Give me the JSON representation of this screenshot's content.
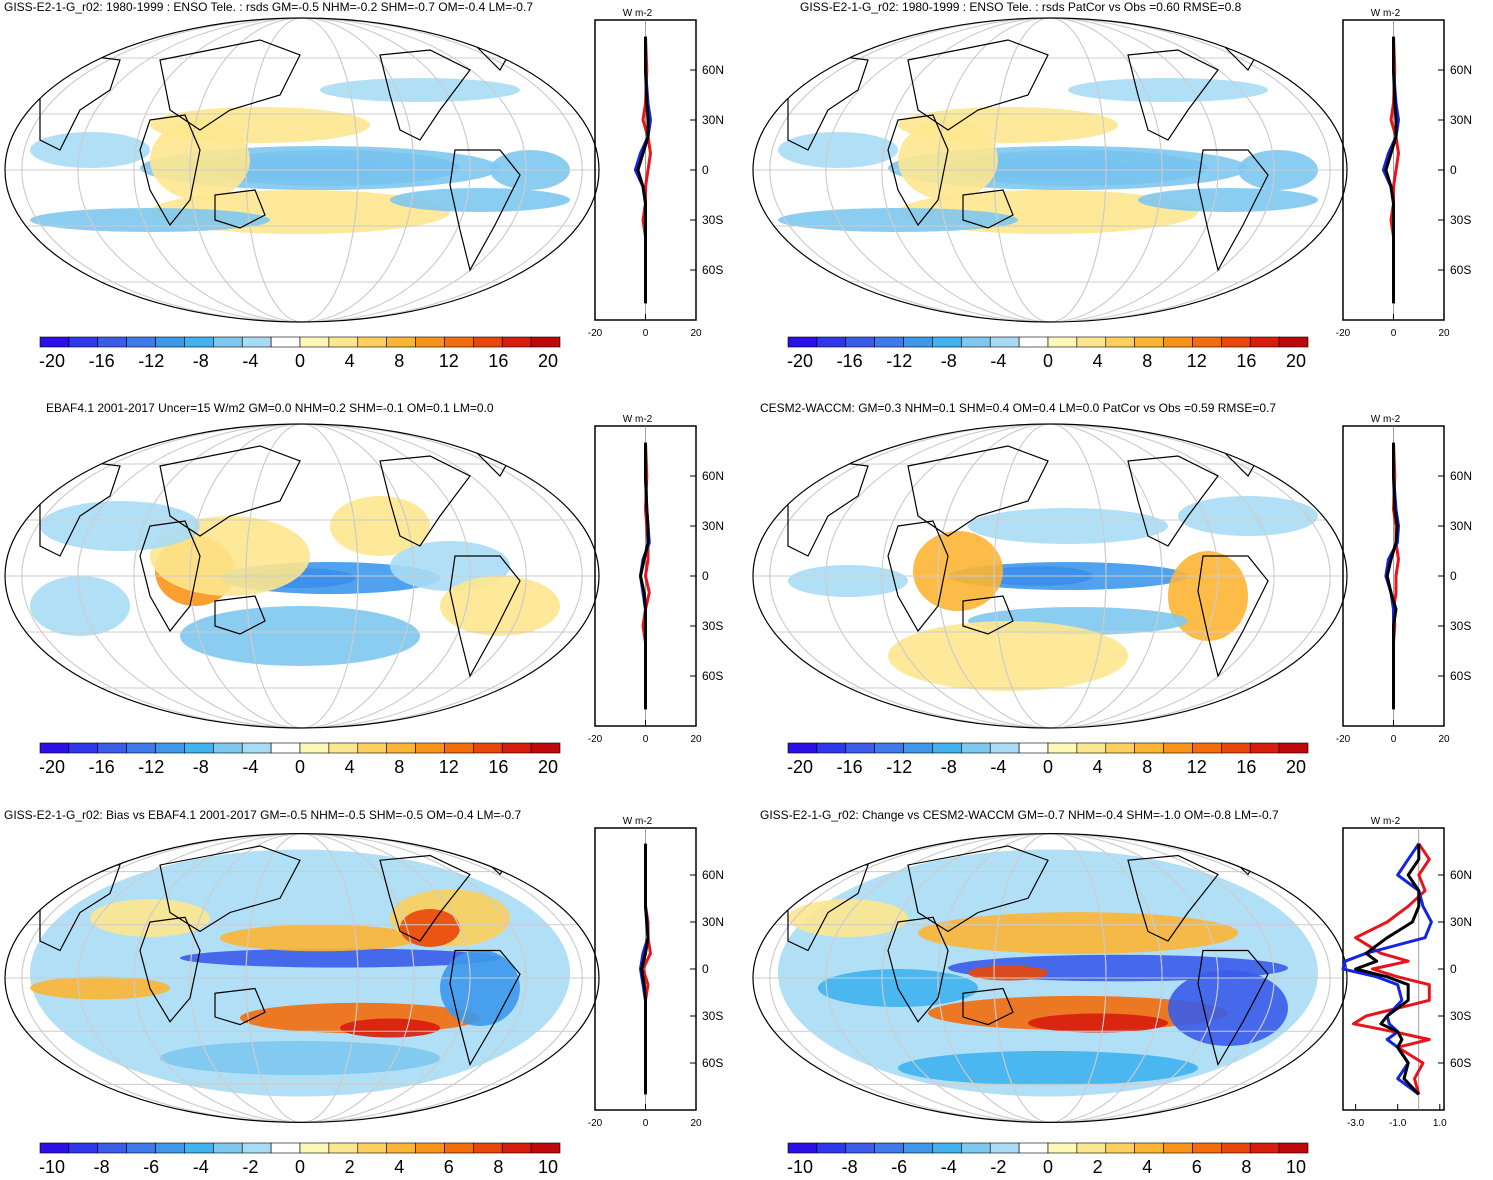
{
  "palette": [
    "#2a10e6",
    "#2f37ea",
    "#3a5ce9",
    "#3f7aec",
    "#3d98ec",
    "#3fb2ef",
    "#7ec8f0",
    "#a9dbf5",
    "#ffffff",
    "#fdf7b8",
    "#fde78e",
    "#fdcf5c",
    "#fcb533",
    "#f99318",
    "#f36d0d",
    "#e9470a",
    "#d81d0c",
    "#bf080b"
  ],
  "panels": [
    {
      "id": "p1",
      "title": "GISS-E2-1-G_r02: 1980-1999 : ENSO Tele. : rsds GM=-0.5 NHM=-0.2 SHM=-0.7 OM=-0.4 LM=-0.7",
      "unit": "W m-2",
      "lat_ticks": [
        "60N",
        "30N",
        "0",
        "30S",
        "60S"
      ],
      "x_ticks": [
        "-20",
        "0",
        "20"
      ],
      "colorbar_labels": [
        "-20",
        "-16",
        "-12",
        "-8",
        "-4",
        "0",
        "4",
        "8",
        "12",
        "16",
        "20"
      ],
      "profile": {
        "xrange": [
          -20,
          20
        ],
        "series": [
          {
            "color": "red",
            "lat": [
              80,
              60,
              40,
              30,
              20,
              10,
              0,
              -10,
              -20,
              -30,
              -40,
              -60,
              -80
            ],
            "values": [
              0,
              0.5,
              0,
              -1,
              1,
              2,
              1,
              0,
              0,
              -1,
              0,
              0,
              0
            ]
          },
          {
            "color": "blue",
            "lat": [
              80,
              60,
              40,
              30,
              20,
              10,
              0,
              -10,
              -20,
              -30,
              -40,
              -60,
              -80
            ],
            "values": [
              0,
              0,
              1,
              2,
              1,
              -2,
              -4,
              -1,
              0,
              0,
              0,
              0,
              0
            ]
          },
          {
            "color": "black",
            "lat": [
              80,
              60,
              40,
              30,
              20,
              10,
              0,
              -10,
              -20,
              -30,
              -40,
              -60,
              -80
            ],
            "values": [
              0,
              0,
              0.5,
              1,
              1,
              -1,
              -3,
              -1,
              0,
              0,
              0,
              0,
              0
            ]
          }
        ]
      }
    },
    {
      "id": "p2",
      "title": "GISS-E2-1-G_r02: 1980-1999 : ENSO Tele. : rsds PatCor vs Obs =0.60 RMSE=0.8",
      "unit": "W m-2",
      "lat_ticks": [
        "60N",
        "30N",
        "0",
        "30S",
        "60S"
      ],
      "x_ticks": [
        "-20",
        "0",
        "20"
      ],
      "colorbar_labels": [
        "-20",
        "-16",
        "-12",
        "-8",
        "-4",
        "0",
        "4",
        "8",
        "12",
        "16",
        "20"
      ],
      "profile": {
        "xrange": [
          -20,
          20
        ],
        "series": [
          {
            "color": "red",
            "lat": [
              80,
              60,
              40,
              30,
              20,
              10,
              0,
              -10,
              -20,
              -30,
              -40,
              -60,
              -80
            ],
            "values": [
              0,
              0.5,
              0,
              -1,
              1,
              2,
              1,
              0,
              0,
              -1,
              0,
              0,
              0
            ]
          },
          {
            "color": "blue",
            "lat": [
              80,
              60,
              40,
              30,
              20,
              10,
              0,
              -10,
              -20,
              -30,
              -40,
              -60,
              -80
            ],
            "values": [
              0,
              0,
              1,
              2,
              1,
              -2,
              -4,
              -1,
              0,
              0,
              0,
              0,
              0
            ]
          },
          {
            "color": "black",
            "lat": [
              80,
              60,
              40,
              30,
              20,
              10,
              0,
              -10,
              -20,
              -30,
              -40,
              -60,
              -80
            ],
            "values": [
              0,
              0,
              0.5,
              1,
              1,
              -1,
              -3,
              -1,
              0,
              0,
              0,
              0,
              0
            ]
          }
        ]
      }
    },
    {
      "id": "p3",
      "title": "EBAF4.1 2001-2017 Uncer=15 W/m2 GM=0.0 NHM=0.2 SHM=-0.1 OM=0.1 LM=0.0",
      "unit": "W m-2",
      "lat_ticks": [
        "60N",
        "30N",
        "0",
        "30S",
        "60S"
      ],
      "x_ticks": [
        "-20",
        "0",
        "20"
      ],
      "colorbar_labels": [
        "-20",
        "-16",
        "-12",
        "-8",
        "-4",
        "0",
        "4",
        "8",
        "12",
        "16",
        "20"
      ],
      "profile": {
        "xrange": [
          -20,
          20
        ],
        "series": [
          {
            "color": "red",
            "lat": [
              80,
              60,
              40,
              30,
              20,
              10,
              0,
              -10,
              -20,
              -30,
              -40,
              -60,
              -80
            ],
            "values": [
              0,
              0.5,
              0,
              0.5,
              1,
              1,
              0,
              1.5,
              0,
              -1,
              0,
              0,
              0
            ]
          },
          {
            "color": "blue",
            "lat": [
              80,
              60,
              40,
              30,
              20,
              10,
              0,
              -10,
              -20,
              -30,
              -40,
              -60,
              -80
            ],
            "values": [
              0,
              0,
              0.5,
              1,
              1.5,
              -1,
              -2,
              -1,
              0,
              0,
              0,
              0,
              0
            ]
          },
          {
            "color": "black",
            "lat": [
              80,
              60,
              40,
              30,
              20,
              10,
              0,
              -10,
              -20,
              -30,
              -40,
              -60,
              -80
            ],
            "values": [
              0,
              0,
              0.5,
              1,
              1,
              -0.5,
              -2,
              -0.5,
              0,
              0,
              0,
              0,
              0
            ]
          }
        ]
      }
    },
    {
      "id": "p4",
      "title": "CESM2-WACCM: GM=0.3 NHM=0.1 SHM=0.4 OM=0.4 LM=0.0 PatCor vs Obs =0.59 RMSE=0.7",
      "unit": "W m-2",
      "lat_ticks": [
        "60N",
        "30N",
        "0",
        "30S",
        "60S"
      ],
      "x_ticks": [
        "-20",
        "0",
        "20"
      ],
      "colorbar_labels": [
        "-20",
        "-16",
        "-12",
        "-8",
        "-4",
        "0",
        "4",
        "8",
        "12",
        "16",
        "20"
      ],
      "profile": {
        "xrange": [
          -20,
          20
        ],
        "series": [
          {
            "color": "red",
            "lat": [
              80,
              60,
              40,
              30,
              20,
              10,
              0,
              -10,
              -20,
              -30,
              -40,
              -60,
              -80
            ],
            "values": [
              0,
              0.5,
              0,
              1,
              1,
              2,
              1,
              1,
              0,
              0.5,
              0,
              0,
              0
            ]
          },
          {
            "color": "blue",
            "lat": [
              80,
              60,
              40,
              30,
              20,
              10,
              0,
              -10,
              -20,
              -30,
              -40,
              -60,
              -80
            ],
            "values": [
              0,
              0,
              1,
              2,
              1.5,
              -2,
              -3,
              -1,
              0,
              0,
              0,
              0,
              0
            ]
          },
          {
            "color": "black",
            "lat": [
              80,
              60,
              40,
              30,
              20,
              10,
              0,
              -10,
              -20,
              -30,
              -40,
              -60,
              -80
            ],
            "values": [
              0,
              0,
              0.5,
              1.5,
              1,
              -1,
              -2.5,
              -1,
              1,
              0,
              0,
              0,
              0
            ]
          }
        ]
      }
    },
    {
      "id": "p5",
      "title": "GISS-E2-1-G_r02: Bias vs EBAF4.1 2001-2017 GM=-0.5 NHM=-0.5 SHM=-0.5 OM=-0.4 LM=-0.7",
      "unit": "W m-2",
      "lat_ticks": [
        "60N",
        "30N",
        "0",
        "30S",
        "60S"
      ],
      "x_ticks": [
        "-20",
        "0",
        "20"
      ],
      "colorbar_labels": [
        "-10",
        "-8",
        "-6",
        "-4",
        "-2",
        "0",
        "2",
        "4",
        "6",
        "8",
        "10"
      ],
      "profile": {
        "xrange": [
          -20,
          20
        ],
        "series": [
          {
            "color": "red",
            "lat": [
              80,
              60,
              40,
              30,
              20,
              10,
              0,
              -10,
              -20,
              -30,
              -40,
              -60,
              -80
            ],
            "values": [
              0,
              0,
              0,
              1,
              1,
              2,
              -1,
              1,
              0,
              0,
              0,
              0,
              0
            ]
          },
          {
            "color": "blue",
            "lat": [
              80,
              60,
              40,
              30,
              20,
              10,
              0,
              -10,
              -20,
              -30,
              -40,
              -60,
              -80
            ],
            "values": [
              0,
              0,
              0,
              0.5,
              1,
              -1,
              -2,
              -1,
              0,
              0,
              0,
              0,
              0
            ]
          },
          {
            "color": "black",
            "lat": [
              80,
              60,
              40,
              30,
              20,
              10,
              0,
              -10,
              -20,
              -30,
              -40,
              -60,
              -80
            ],
            "values": [
              0,
              0,
              0,
              0.5,
              1,
              0,
              -1.5,
              -0.5,
              0,
              0,
              0,
              0,
              0
            ]
          }
        ]
      }
    },
    {
      "id": "p6",
      "title": "GISS-E2-1-G_r02: Change vs CESM2-WACCM GM=-0.7 NHM=-0.4 SHM=-1.0 OM=-0.8 LM=-0.7",
      "unit": "W m-2",
      "lat_ticks": [
        "60N",
        "30N",
        "0",
        "30S",
        "60S"
      ],
      "x_ticks": [
        "-3.0",
        "-1.0",
        "1.0"
      ],
      "colorbar_labels": [
        "-10",
        "-8",
        "-6",
        "-4",
        "-2",
        "0",
        "2",
        "4",
        "6",
        "8",
        "10"
      ],
      "profile": {
        "xrange": [
          -3.6,
          1.2
        ],
        "series": [
          {
            "color": "red",
            "lat": [
              80,
              70,
              60,
              50,
              40,
              30,
              20,
              10,
              5,
              0,
              -5,
              -10,
              -20,
              -30,
              -35,
              -40,
              -45,
              -50,
              -60,
              -70,
              -80
            ],
            "values": [
              0,
              0.5,
              0,
              0.3,
              -0.5,
              -1.5,
              -3.0,
              -1.8,
              -0.5,
              -2.2,
              -1.0,
              0.5,
              0.5,
              -2.5,
              -3.1,
              -1.2,
              0.5,
              -1.0,
              0.2,
              -0.2,
              0
            ]
          },
          {
            "color": "blue",
            "lat": [
              80,
              70,
              60,
              50,
              40,
              30,
              20,
              10,
              5,
              0,
              -5,
              -10,
              -20,
              -30,
              -35,
              -40,
              -45,
              -50,
              -60,
              -70,
              -80
            ],
            "values": [
              0,
              -0.5,
              -1.0,
              0,
              0.2,
              0.6,
              0.3,
              -2.5,
              -3.5,
              -3.6,
              -2.0,
              -1.0,
              -0.8,
              -1.5,
              -1.4,
              -1.0,
              -1.5,
              -1.0,
              -0.5,
              -1.0,
              0
            ]
          },
          {
            "color": "black",
            "lat": [
              80,
              70,
              60,
              50,
              40,
              30,
              20,
              10,
              5,
              0,
              -5,
              -10,
              -20,
              -30,
              -35,
              -40,
              -45,
              -50,
              -60,
              -70,
              -80
            ],
            "values": [
              0,
              0,
              -0.5,
              0,
              0,
              -0.3,
              -1.5,
              -2.5,
              -2.0,
              -3.0,
              -1.5,
              -0.5,
              -0.5,
              -1.5,
              -1.8,
              -1.0,
              -0.8,
              -1.0,
              -0.5,
              -0.7,
              0
            ]
          }
        ]
      }
    }
  ],
  "chart_data": [
    {
      "type": "heatmap",
      "title": "GISS-E2-1-G_r02: 1980-1999 : ENSO Tele. : rsds GM=-0.5 NHM=-0.2 SHM=-0.7 OM=-0.4 LM=-0.7",
      "colorbar_range": [
        -20,
        20
      ],
      "ylabel": "W m-2"
    },
    {
      "type": "heatmap",
      "title": "GISS-E2-1-G_r02: 1980-1999 : ENSO Tele. : rsds PatCor vs Obs =0.60 RMSE=0.8",
      "colorbar_range": [
        -20,
        20
      ],
      "ylabel": "W m-2"
    },
    {
      "type": "heatmap",
      "title": "EBAF4.1 2001-2017 Uncer=15 W/m2 GM=0.0 NHM=0.2 SHM=-0.1 OM=0.1 LM=0.0",
      "colorbar_range": [
        -20,
        20
      ],
      "ylabel": "W m-2"
    },
    {
      "type": "heatmap",
      "title": "CESM2-WACCM: GM=0.3 NHM=0.1 SHM=0.4 OM=0.4 LM=0.0 PatCor vs Obs =0.59 RMSE=0.7",
      "colorbar_range": [
        -20,
        20
      ],
      "ylabel": "W m-2"
    },
    {
      "type": "heatmap",
      "title": "GISS-E2-1-G_r02: Bias vs EBAF4.1 2001-2017 GM=-0.5 NHM=-0.5 SHM=-0.5 OM=-0.4 LM=-0.7",
      "colorbar_range": [
        -10,
        10
      ],
      "ylabel": "W m-2"
    },
    {
      "type": "heatmap",
      "title": "GISS-E2-1-G_r02: Change vs CESM2-WACCM GM=-0.7 NHM=-0.4 SHM=-1.0 OM=-0.8 LM=-0.7",
      "colorbar_range": [
        -10,
        10
      ],
      "ylabel": "W m-2"
    }
  ]
}
